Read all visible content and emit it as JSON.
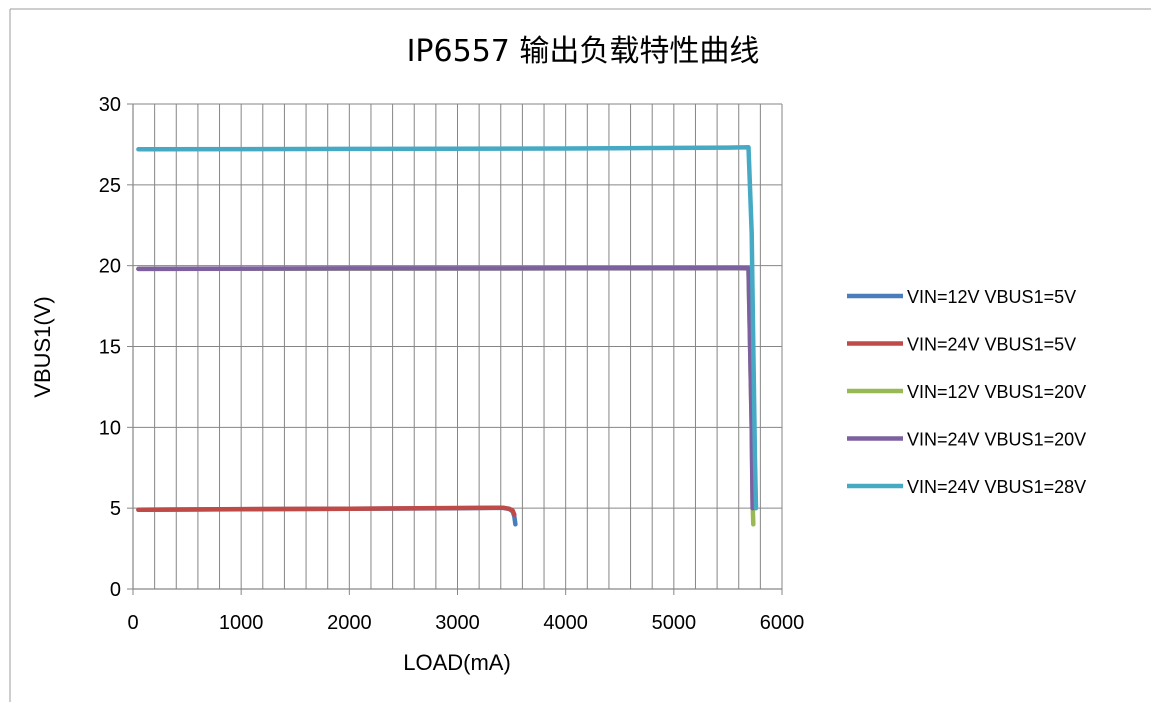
{
  "chart_data": {
    "type": "line",
    "title": "IP6557 输出负载特性曲线",
    "xlabel": "LOAD(mA)",
    "ylabel": "VBUS1(V)",
    "xlim": [
      0,
      6000
    ],
    "ylim": [
      0,
      30
    ],
    "x_ticks": [
      0,
      1000,
      2000,
      3000,
      4000,
      5000,
      6000
    ],
    "y_ticks": [
      0,
      5,
      10,
      15,
      20,
      25,
      30
    ],
    "x_minor_grid_step": 200,
    "grid": true,
    "legend_position": "right",
    "series": [
      {
        "name": "VIN=12V VBUS1=5V",
        "color": "#4A7EBB",
        "points": [
          [
            50,
            4.9
          ],
          [
            1000,
            4.93
          ],
          [
            2000,
            4.96
          ],
          [
            3000,
            5.0
          ],
          [
            3420,
            5.02
          ],
          [
            3480,
            4.95
          ],
          [
            3510,
            4.8
          ],
          [
            3525,
            4.5
          ],
          [
            3535,
            4.0
          ]
        ]
      },
      {
        "name": "VIN=24V VBUS1=5V",
        "color": "#BE4B48",
        "points": [
          [
            50,
            4.9
          ],
          [
            1000,
            4.94
          ],
          [
            2000,
            4.97
          ],
          [
            3000,
            5.01
          ],
          [
            3420,
            5.03
          ],
          [
            3480,
            4.96
          ],
          [
            3510,
            4.85
          ],
          [
            3525,
            4.6
          ]
        ]
      },
      {
        "name": "VIN=12V VBUS1=20V",
        "color": "#98B954",
        "points": [
          [
            50,
            19.8
          ],
          [
            2000,
            19.82
          ],
          [
            4000,
            19.83
          ],
          [
            5600,
            19.84
          ],
          [
            5690,
            19.83
          ],
          [
            5705,
            15.0
          ],
          [
            5720,
            10.0
          ],
          [
            5730,
            5.0
          ],
          [
            5735,
            4.0
          ]
        ]
      },
      {
        "name": "VIN=24V VBUS1=20V",
        "color": "#7D60A0",
        "points": [
          [
            50,
            19.8
          ],
          [
            2000,
            19.83
          ],
          [
            4000,
            19.84
          ],
          [
            5600,
            19.85
          ],
          [
            5690,
            19.84
          ],
          [
            5705,
            15.0
          ],
          [
            5720,
            10.0
          ],
          [
            5728,
            5.0
          ]
        ]
      },
      {
        "name": "VIN=24V VBUS1=28V",
        "color": "#46AAC5",
        "points": [
          [
            50,
            27.2
          ],
          [
            2000,
            27.22
          ],
          [
            4000,
            27.25
          ],
          [
            5500,
            27.3
          ],
          [
            5690,
            27.32
          ],
          [
            5720,
            22.0
          ],
          [
            5735,
            15.0
          ],
          [
            5750,
            8.0
          ],
          [
            5760,
            5.0
          ]
        ]
      }
    ]
  }
}
